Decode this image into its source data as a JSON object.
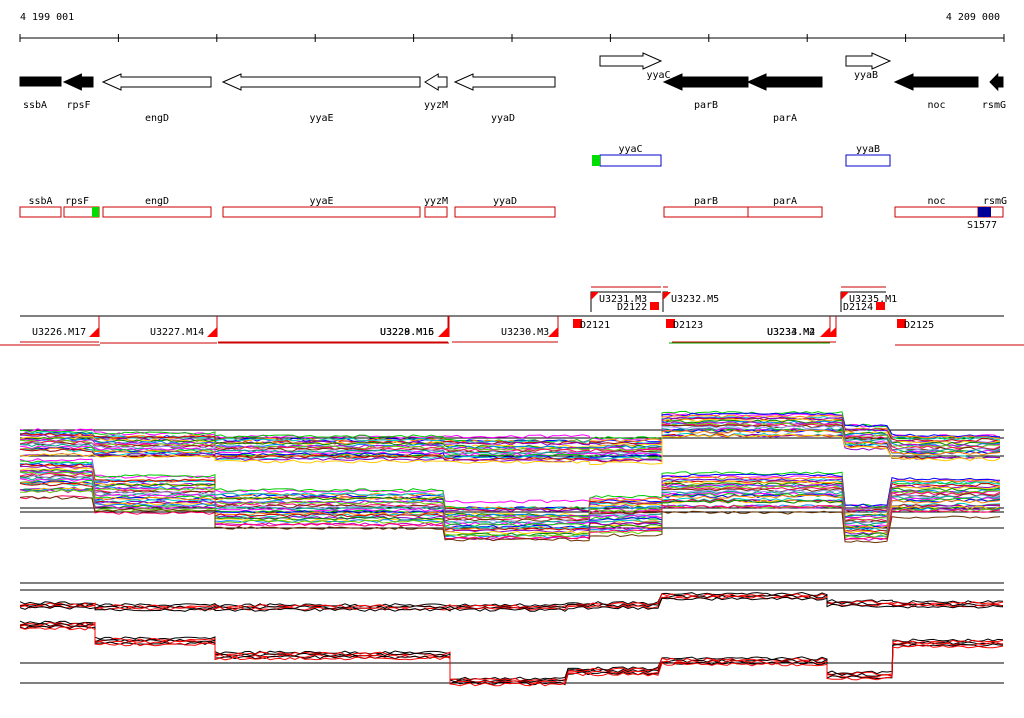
{
  "coords": {
    "start": "4 199 001",
    "end": "4 209 000"
  },
  "genes": [
    {
      "name": "ssbA",
      "strand": "-",
      "fill": "black",
      "start": 20,
      "end": 61
    },
    {
      "name": "rpsF",
      "strand": "-",
      "fill": "black",
      "start": 64,
      "end": 93
    },
    {
      "name": "engD",
      "strand": "-",
      "fill": "white",
      "start": 103,
      "end": 211
    },
    {
      "name": "yyaE",
      "strand": "-",
      "fill": "white",
      "start": 223,
      "end": 420
    },
    {
      "name": "yyzM",
      "strand": "-",
      "fill": "white",
      "start": 425,
      "end": 447
    },
    {
      "name": "yyaD",
      "strand": "-",
      "fill": "white",
      "start": 455,
      "end": 555
    },
    {
      "name": "yyaC",
      "strand": "+",
      "fill": "white",
      "start": 600,
      "end": 661
    },
    {
      "name": "parB",
      "strand": "-",
      "fill": "black",
      "start": 664,
      "end": 748
    },
    {
      "name": "parA",
      "strand": "-",
      "fill": "black",
      "start": 748,
      "end": 822
    },
    {
      "name": "yyaB",
      "strand": "+",
      "fill": "white",
      "start": 846,
      "end": 890
    },
    {
      "name": "noc",
      "strand": "-",
      "fill": "black",
      "start": 895,
      "end": 978
    },
    {
      "name": "rsmG",
      "strand": "-",
      "fill": "black",
      "start": 990,
      "end": 1003
    }
  ],
  "forward_boxes": [
    {
      "name": "yyaC",
      "start": 600,
      "end": 661,
      "marker_color": "#00dd00",
      "marker": [
        592,
        600
      ]
    },
    {
      "name": "yyaB",
      "start": 846,
      "end": 890
    }
  ],
  "reverse_boxes": [
    {
      "name": "ssbA",
      "start": 20,
      "end": 61
    },
    {
      "name": "rpsF",
      "start": 64,
      "end": 99,
      "marker_color": "#00dd00",
      "marker": [
        92,
        99
      ]
    },
    {
      "name": "engD",
      "start": 103,
      "end": 211
    },
    {
      "name": "yyaE",
      "start": 223,
      "end": 420
    },
    {
      "name": "yyzM",
      "start": 425,
      "end": 447
    },
    {
      "name": "yyaD",
      "start": 455,
      "end": 555
    },
    {
      "name": "parB",
      "start": 664,
      "end": 748
    },
    {
      "name": "parA",
      "start": 748,
      "end": 822
    },
    {
      "name": "noc",
      "start": 895,
      "end": 978
    },
    {
      "name": "rsmG",
      "start": 978,
      "end": 1003,
      "marker_color": "#000099",
      "marker": [
        978,
        991
      ]
    }
  ],
  "site_label": "S1577",
  "upper_segments": [
    {
      "label": "U3231.M3",
      "start": 591,
      "end": 661
    },
    {
      "label": "U3232.M5",
      "start": 663,
      "end": 668
    },
    {
      "label": "U3235.M1",
      "start": 841,
      "end": 886
    }
  ],
  "upper_d_labels": [
    {
      "label": "D2122",
      "pos": 617
    },
    {
      "label": "D2124",
      "pos": 843
    }
  ],
  "lower_segments": [
    {
      "label": "U3226.M17",
      "start": 20,
      "end": 99
    },
    {
      "label": "U3227.M14",
      "start": 100,
      "end": 217
    },
    {
      "label": "U3228.M16",
      "start": 218,
      "end": 448
    },
    {
      "label": "U3229.M15",
      "start": 218,
      "end": 449
    },
    {
      "label": "U3230.M3",
      "start": 452,
      "end": 558
    },
    {
      "label": "U3233.M4",
      "start": 669,
      "end": 830
    },
    {
      "label": "U3234.M2",
      "start": 672,
      "end": 836
    }
  ],
  "lower_d_labels": [
    {
      "label": "D2121",
      "pos": 573
    },
    {
      "label": "D2123",
      "pos": 666
    },
    {
      "label": "D2125",
      "pos": 897
    }
  ],
  "profile1": {
    "boundaries": [
      20,
      95,
      215,
      445,
      590,
      662,
      845,
      892,
      1003
    ],
    "upper_level": [
      442,
      445,
      448,
      450,
      450,
      425,
      437,
      447
    ],
    "lower_level": [
      478,
      494,
      508,
      522,
      515,
      492,
      523,
      497
    ],
    "upper_spread": 28,
    "lower_spread": 42
  },
  "profile2": {
    "boundaries": [
      20,
      95,
      215,
      450,
      568,
      662,
      827,
      893,
      1003
    ],
    "upper_level": [
      606,
      608,
      608,
      608,
      606,
      597,
      604,
      605
    ],
    "lower_level": [
      626,
      642,
      656,
      682,
      672,
      662,
      676,
      644
    ],
    "colors": [
      "#000000",
      "#ff0000"
    ]
  }
}
